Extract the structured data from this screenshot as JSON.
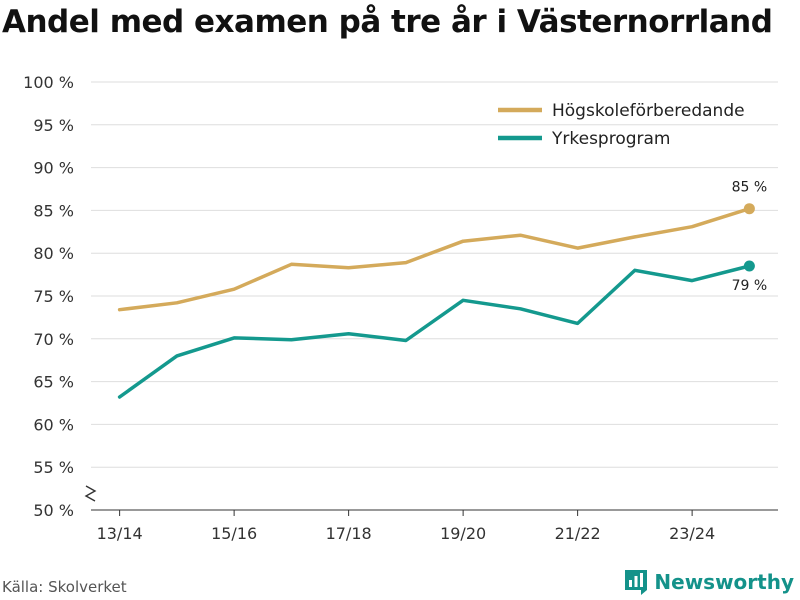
{
  "chart_data": {
    "type": "line",
    "title": "Andel med examen på tre år i Västernorrland",
    "xlabel": "",
    "ylabel": "",
    "x_positions": [
      0,
      1,
      2,
      3,
      4,
      5,
      6,
      7,
      8,
      9,
      10,
      11
    ],
    "x_ticks": [
      {
        "pos": 0,
        "label": "13/14"
      },
      {
        "pos": 2,
        "label": "15/16"
      },
      {
        "pos": 4,
        "label": "17/18"
      },
      {
        "pos": 6,
        "label": "19/20"
      },
      {
        "pos": 8,
        "label": "21/22"
      },
      {
        "pos": 10,
        "label": "23/24"
      }
    ],
    "xlim": [
      -0.5,
      11.5
    ],
    "ylim": [
      50,
      100
    ],
    "y_ticks": [
      50,
      55,
      60,
      65,
      70,
      75,
      80,
      85,
      90,
      95,
      100
    ],
    "y_tick_labels": [
      "50 %",
      "55 %",
      "60 %",
      "65 %",
      "70 %",
      "75 %",
      "80 %",
      "85 %",
      "90 %",
      "95 %",
      "100 %"
    ],
    "axis_break": true,
    "grid": true,
    "legend_position": "top-right",
    "series": [
      {
        "name": "Högskoleförberedande",
        "color": "#d4aa5b",
        "values": [
          73.4,
          74.2,
          75.8,
          78.7,
          78.3,
          78.9,
          81.4,
          82.1,
          80.6,
          81.9,
          83.1,
          85.2
        ],
        "end_label": "85 %"
      },
      {
        "name": "Yrkesprogram",
        "color": "#14998e",
        "values": [
          63.2,
          68.0,
          70.1,
          69.9,
          70.6,
          69.8,
          74.5,
          73.5,
          71.8,
          78.0,
          76.8,
          78.5
        ],
        "end_label": "79 %"
      }
    ]
  },
  "footer": {
    "source": "Källa: Skolverket",
    "brand": "Newsworthy",
    "brand_icon": "bar-chart-logo-icon",
    "brand_color": "#14928a"
  }
}
